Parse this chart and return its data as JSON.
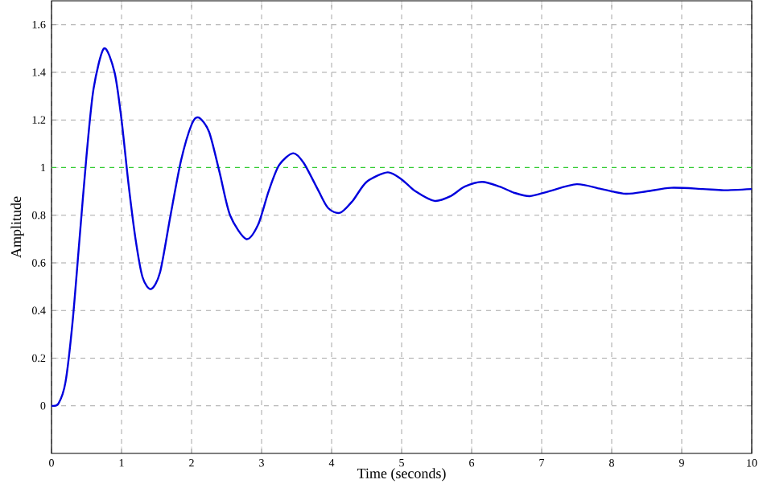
{
  "chart_data": {
    "type": "line",
    "xlabel": "Time (seconds)",
    "ylabel": "Amplitude",
    "xlim": [
      0,
      10
    ],
    "ylim": [
      -0.2,
      1.7
    ],
    "xticks": [
      0,
      1,
      2,
      3,
      4,
      5,
      6,
      7,
      8,
      9,
      10
    ],
    "yticks": [
      0,
      0.2,
      0.4,
      0.6,
      0.8,
      1,
      1.2,
      1.4,
      1.6
    ],
    "grid": true,
    "marker": "none",
    "line_style": "solid",
    "ref_lines": [
      {
        "axis": "y",
        "value": 1,
        "color": "#33cc33",
        "line_style": "dashed"
      }
    ],
    "series": [
      {
        "color": "#0000dd",
        "x": [
          0,
          0.1,
          0.2,
          0.3,
          0.4,
          0.5,
          0.6,
          0.75,
          0.9,
          1.0,
          1.1,
          1.2,
          1.3,
          1.42,
          1.55,
          1.7,
          1.85,
          2.0,
          2.1,
          2.25,
          2.4,
          2.55,
          2.78,
          2.95,
          3.1,
          3.25,
          3.45,
          3.6,
          3.8,
          3.95,
          4.12,
          4.3,
          4.5,
          4.8,
          5.0,
          5.2,
          5.47,
          5.7,
          5.9,
          6.15,
          6.4,
          6.6,
          6.83,
          7.1,
          7.5,
          7.85,
          8.2,
          8.5,
          8.85,
          9.3,
          9.6,
          10
        ],
        "values": [
          0,
          0.01,
          0.1,
          0.35,
          0.7,
          1.05,
          1.33,
          1.5,
          1.4,
          1.2,
          0.93,
          0.7,
          0.54,
          0.49,
          0.56,
          0.8,
          1.03,
          1.18,
          1.21,
          1.15,
          0.98,
          0.8,
          0.7,
          0.76,
          0.9,
          1.01,
          1.06,
          1.02,
          0.91,
          0.83,
          0.81,
          0.86,
          0.94,
          0.98,
          0.95,
          0.9,
          0.86,
          0.88,
          0.92,
          0.94,
          0.92,
          0.895,
          0.88,
          0.9,
          0.93,
          0.91,
          0.89,
          0.9,
          0.915,
          0.91,
          0.905,
          0.91
        ]
      }
    ]
  }
}
